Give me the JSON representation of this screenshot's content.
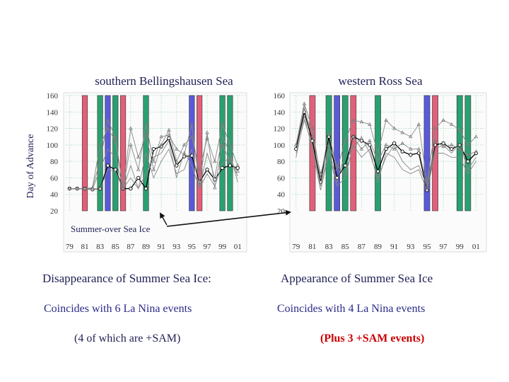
{
  "y_axis_label": "Day of Advance",
  "annotation": "Summer-over Sea Ice",
  "captions": {
    "left_heading": "Disappearance of Summer Sea Ice:",
    "right_heading": "Appearance of Summer Sea Ice",
    "left_line1": "Coincides with 6 La Nina events",
    "right_line1": "Coincides with 4 La Nina events",
    "left_line2": "(4 of which are +SAM)",
    "right_line2": "(Plus 3 +SAM events)"
  },
  "colors": {
    "la_nina": "#e0607a",
    "sam": "#2aa070",
    "el_nino": "#5a5ad8",
    "caption_text": "#1f1f55",
    "highlight_red": "#cc0000",
    "line": "#888888",
    "main_line": "#000000"
  },
  "chart_data": [
    {
      "type": "line",
      "title": "southern Bellingshausen Sea",
      "ylim": [
        20,
        160
      ],
      "yticks": [
        160,
        140,
        120,
        100,
        80,
        60,
        40,
        20
      ],
      "xlim": [
        1978.5,
        2002
      ],
      "xticks": [
        "79",
        "81",
        "83",
        "85",
        "87",
        "89",
        "91",
        "93",
        "95",
        "97",
        "99",
        "01"
      ],
      "grid": true,
      "shaded_years": {
        "la_nina": [
          1981,
          1986,
          1996
        ],
        "sam": [
          1983,
          1985,
          1989,
          1999,
          2000
        ],
        "el_nino": [
          1984,
          1995
        ]
      },
      "series": [
        {
          "role": "main",
          "x": [
            1979,
            1980,
            1981,
            1982,
            1983,
            1984,
            1985,
            1986,
            1987,
            1988,
            1989,
            1990,
            1991,
            1992,
            1993,
            1994,
            1995,
            1996,
            1997,
            1998,
            1999,
            2000,
            2001
          ],
          "y": [
            47,
            47,
            47,
            46,
            47,
            75,
            70,
            47,
            47,
            60,
            47,
            95,
            98,
            108,
            75,
            86,
            87,
            55,
            70,
            58,
            72,
            75,
            72
          ]
        },
        {
          "role": "minor",
          "x": [
            1979,
            1980,
            1981,
            1982,
            1983,
            1984,
            1985,
            1986,
            1987,
            1988,
            1989,
            1990,
            1991,
            1992,
            1993,
            1994,
            1995,
            1996,
            1997,
            1998,
            1999,
            2000,
            2001
          ],
          "y": [
            47,
            47,
            47,
            48,
            80,
            130,
            110,
            48,
            100,
            70,
            125,
            80,
            110,
            112,
            95,
            88,
            125,
            52,
            115,
            48,
            100,
            80,
            68
          ]
        },
        {
          "role": "minor",
          "x": [
            1979,
            1980,
            1981,
            1982,
            1983,
            1984,
            1985,
            1986,
            1987,
            1988,
            1989,
            1990,
            1991,
            1992,
            1993,
            1994,
            1995,
            1996,
            1997,
            1998,
            1999,
            2000,
            2001
          ],
          "y": [
            47,
            47,
            47,
            46,
            47,
            70,
            68,
            47,
            75,
            47,
            65,
            85,
            90,
            105,
            60,
            92,
            75,
            47,
            65,
            50,
            78,
            85,
            62
          ]
        },
        {
          "role": "minor",
          "x": [
            1979,
            1980,
            1981,
            1982,
            1983,
            1984,
            1985,
            1986,
            1987,
            1988,
            1989,
            1990,
            1991,
            1992,
            1993,
            1994,
            1995,
            1996,
            1997,
            1998,
            1999,
            2000,
            2001
          ],
          "y": [
            47,
            47,
            47,
            48,
            100,
            120,
            105,
            48,
            120,
            85,
            112,
            70,
            100,
            118,
            80,
            100,
            110,
            70,
            108,
            80,
            125,
            100,
            75
          ]
        },
        {
          "role": "minor",
          "x": [
            1979,
            1980,
            1981,
            1982,
            1983,
            1984,
            1985,
            1986,
            1987,
            1988,
            1989,
            1990,
            1991,
            1992,
            1993,
            1994,
            1995,
            1996,
            1997,
            1998,
            1999,
            2000,
            2001
          ],
          "y": [
            47,
            47,
            47,
            46,
            70,
            95,
            85,
            47,
            60,
            47,
            90,
            60,
            80,
            95,
            65,
            70,
            95,
            47,
            90,
            60,
            110,
            90,
            55
          ]
        }
      ]
    },
    {
      "type": "line",
      "title": "western Ross Sea",
      "ylim": [
        20,
        160
      ],
      "yticks": [
        160,
        140,
        120,
        100,
        80,
        60,
        40,
        20
      ],
      "xlim": [
        1978.5,
        2002
      ],
      "xticks": [
        "79",
        "81",
        "83",
        "85",
        "87",
        "89",
        "91",
        "93",
        "95",
        "97",
        "99",
        "01"
      ],
      "grid": true,
      "shaded_years": {
        "la_nina": [
          1981,
          1986,
          1996
        ],
        "sam": [
          1983,
          1985,
          1989,
          1999,
          2000
        ],
        "el_nino": [
          1984,
          1995
        ]
      },
      "series": [
        {
          "role": "main",
          "x": [
            1979,
            1980,
            1981,
            1982,
            1983,
            1984,
            1985,
            1986,
            1987,
            1988,
            1989,
            1990,
            1991,
            1992,
            1993,
            1994,
            1995,
            1996,
            1997,
            1998,
            1999,
            2000,
            2001
          ],
          "y": [
            95,
            140,
            105,
            55,
            110,
            60,
            75,
            110,
            105,
            100,
            68,
            95,
            102,
            92,
            88,
            90,
            45,
            100,
            102,
            95,
            100,
            80,
            90
          ]
        },
        {
          "role": "minor",
          "x": [
            1979,
            1980,
            1981,
            1982,
            1983,
            1984,
            1985,
            1986,
            1987,
            1988,
            1989,
            1990,
            1991,
            1992,
            1993,
            1994,
            1995,
            1996,
            1997,
            1998,
            1999,
            2000,
            2001
          ],
          "y": [
            100,
            150,
            120,
            60,
            115,
            70,
            105,
            130,
            128,
            125,
            90,
            130,
            120,
            115,
            110,
            125,
            55,
            120,
            130,
            125,
            118,
            100,
            110
          ]
        },
        {
          "role": "minor",
          "x": [
            1979,
            1980,
            1981,
            1982,
            1983,
            1984,
            1985,
            1986,
            1987,
            1988,
            1989,
            1990,
            1991,
            1992,
            1993,
            1994,
            1995,
            1996,
            1997,
            1998,
            1999,
            2000,
            2001
          ],
          "y": [
            90,
            130,
            100,
            50,
            95,
            55,
            90,
            95,
            110,
            90,
            60,
            85,
            100,
            80,
            70,
            75,
            50,
            95,
            100,
            90,
            102,
            70,
            85
          ]
        },
        {
          "role": "minor",
          "x": [
            1979,
            1980,
            1981,
            1982,
            1983,
            1984,
            1985,
            1986,
            1987,
            1988,
            1989,
            1990,
            1991,
            1992,
            1993,
            1994,
            1995,
            1996,
            1997,
            1998,
            1999,
            2000,
            2001
          ],
          "y": [
            100,
            145,
            110,
            65,
            100,
            75,
            65,
            110,
            95,
            105,
            80,
            100,
            95,
            102,
            95,
            95,
            48,
            105,
            98,
            100,
            95,
            88,
            92
          ]
        },
        {
          "role": "minor",
          "x": [
            1979,
            1980,
            1981,
            1982,
            1983,
            1984,
            1985,
            1986,
            1987,
            1988,
            1989,
            1990,
            1991,
            1992,
            1993,
            1994,
            1995,
            1996,
            1997,
            1998,
            1999,
            2000,
            2001
          ],
          "y": [
            85,
            135,
            95,
            45,
            90,
            50,
            60,
            100,
            85,
            95,
            55,
            90,
            85,
            70,
            65,
            70,
            45,
            90,
            90,
            85,
            85,
            65,
            80
          ]
        }
      ]
    }
  ]
}
